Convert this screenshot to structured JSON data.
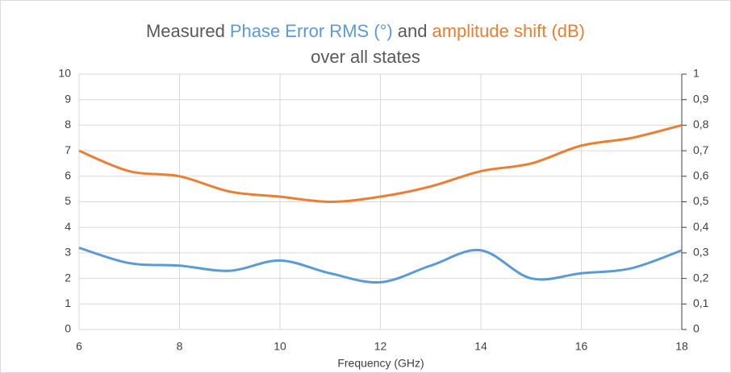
{
  "chart_data": {
    "type": "line",
    "title": {
      "lead": "Measured",
      "joiner": "and",
      "line2": "over all states"
    },
    "xlabel": "Frequency (GHz)",
    "x": [
      6,
      7,
      8,
      9,
      10,
      11,
      12,
      13,
      14,
      15,
      16,
      17,
      18
    ],
    "series": [
      {
        "name": "Phase Error RMS (°)",
        "color": "#5b9bd5",
        "values": [
          3.2,
          2.6,
          2.5,
          2.3,
          2.7,
          2.2,
          1.85,
          2.5,
          3.1,
          2.0,
          2.2,
          2.4,
          3.1
        ]
      },
      {
        "name": "amplitude shift (dB)",
        "color": "#ed7d31",
        "axis": "y2",
        "values": [
          0.7,
          0.62,
          0.6,
          0.54,
          0.52,
          0.5,
          0.52,
          0.56,
          0.62,
          0.65,
          0.72,
          0.75,
          0.8
        ]
      }
    ],
    "xlim": [
      6,
      18
    ],
    "xticks": [
      6,
      8,
      10,
      12,
      14,
      16,
      18
    ],
    "ylim": [
      0,
      10
    ],
    "yticks": [
      0,
      1,
      2,
      3,
      4,
      5,
      6,
      7,
      8,
      9,
      10
    ],
    "y2lim": [
      0,
      1
    ],
    "y2ticks": [
      0,
      {
        "value": 0.1,
        "label": "0,1"
      },
      {
        "value": 0.2,
        "label": "0,2"
      },
      {
        "value": 0.3,
        "label": "0,3"
      },
      {
        "value": 0.4,
        "label": "0,4"
      },
      {
        "value": 0.5,
        "label": "0,5"
      },
      {
        "value": 0.6,
        "label": "0,6"
      },
      {
        "value": 0.7,
        "label": "0,7"
      },
      {
        "value": 0.8,
        "label": "0,8"
      },
      {
        "value": 0.9,
        "label": "0,9"
      },
      1
    ],
    "grid": true
  }
}
